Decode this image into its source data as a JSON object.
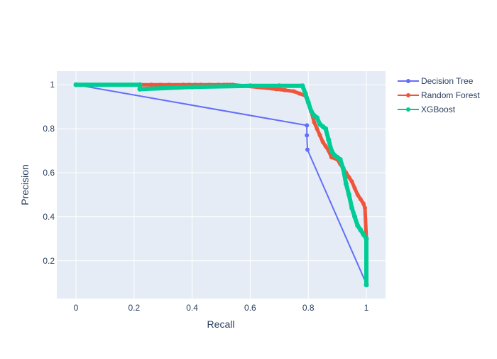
{
  "chart_data": {
    "type": "line",
    "title": "",
    "xlabel": "Recall",
    "ylabel": "Precision",
    "xlim": [
      -0.066,
      1.066
    ],
    "ylim": [
      0.028,
      1.062
    ],
    "x_ticks": [
      0,
      0.2,
      0.4,
      0.6,
      0.8,
      1
    ],
    "x_tick_labels": [
      "0",
      "0.2",
      "0.4",
      "0.6",
      "0.8",
      "1"
    ],
    "y_ticks": [
      0.2,
      0.4,
      0.6,
      0.8,
      1
    ],
    "y_tick_labels": [
      "0.2",
      "0.4",
      "0.6",
      "0.8",
      "1"
    ],
    "grid": true,
    "legend_position": "top-right",
    "series": [
      {
        "name": "Decision Tree",
        "color": "#636efa",
        "x": [
          0,
          0.795,
          0.795,
          0.797,
          1.0
        ],
        "y": [
          1.0,
          0.815,
          0.77,
          0.705,
          0.095
        ]
      },
      {
        "name": "Random Forest",
        "color": "#ef553b",
        "x": [
          0.0,
          0.26,
          0.29,
          0.32,
          0.37,
          0.39,
          0.41,
          0.43,
          0.46,
          0.49,
          0.51,
          0.52,
          0.53,
          0.54,
          0.69,
          0.72,
          0.75,
          0.77,
          0.79,
          0.8,
          0.81,
          0.82,
          0.83,
          0.84,
          0.85,
          0.86,
          0.87,
          0.88,
          0.9,
          0.91,
          0.92,
          0.93,
          0.94,
          0.95,
          0.96,
          0.97,
          0.98,
          0.99,
          0.995,
          1.0,
          1.0
        ],
        "y": [
          1.0,
          1.0,
          1.0,
          1.0,
          1.0,
          1.0,
          1.0,
          1.0,
          1.0,
          1.0,
          1.0,
          1.0,
          1.0,
          1.0,
          0.98,
          0.975,
          0.97,
          0.96,
          0.95,
          0.92,
          0.88,
          0.83,
          0.8,
          0.77,
          0.74,
          0.72,
          0.7,
          0.67,
          0.66,
          0.64,
          0.62,
          0.6,
          0.58,
          0.56,
          0.53,
          0.5,
          0.48,
          0.46,
          0.44,
          0.3,
          0.1
        ]
      },
      {
        "name": "XGBoost",
        "color": "#00cc96",
        "x": [
          0.0,
          0.22,
          0.22,
          0.4,
          0.6,
          0.7,
          0.78,
          0.79,
          0.8,
          0.81,
          0.82,
          0.83,
          0.84,
          0.85,
          0.86,
          0.87,
          0.88,
          0.89,
          0.9,
          0.91,
          0.92,
          0.93,
          0.94,
          0.95,
          0.96,
          0.97,
          0.98,
          0.99,
          1.0,
          1.0
        ],
        "y": [
          1.0,
          1.0,
          0.98,
          0.99,
          0.995,
          0.995,
          0.995,
          0.96,
          0.92,
          0.88,
          0.86,
          0.85,
          0.82,
          0.81,
          0.8,
          0.75,
          0.7,
          0.68,
          0.67,
          0.66,
          0.62,
          0.55,
          0.5,
          0.44,
          0.4,
          0.36,
          0.34,
          0.32,
          0.3,
          0.09
        ]
      }
    ]
  }
}
